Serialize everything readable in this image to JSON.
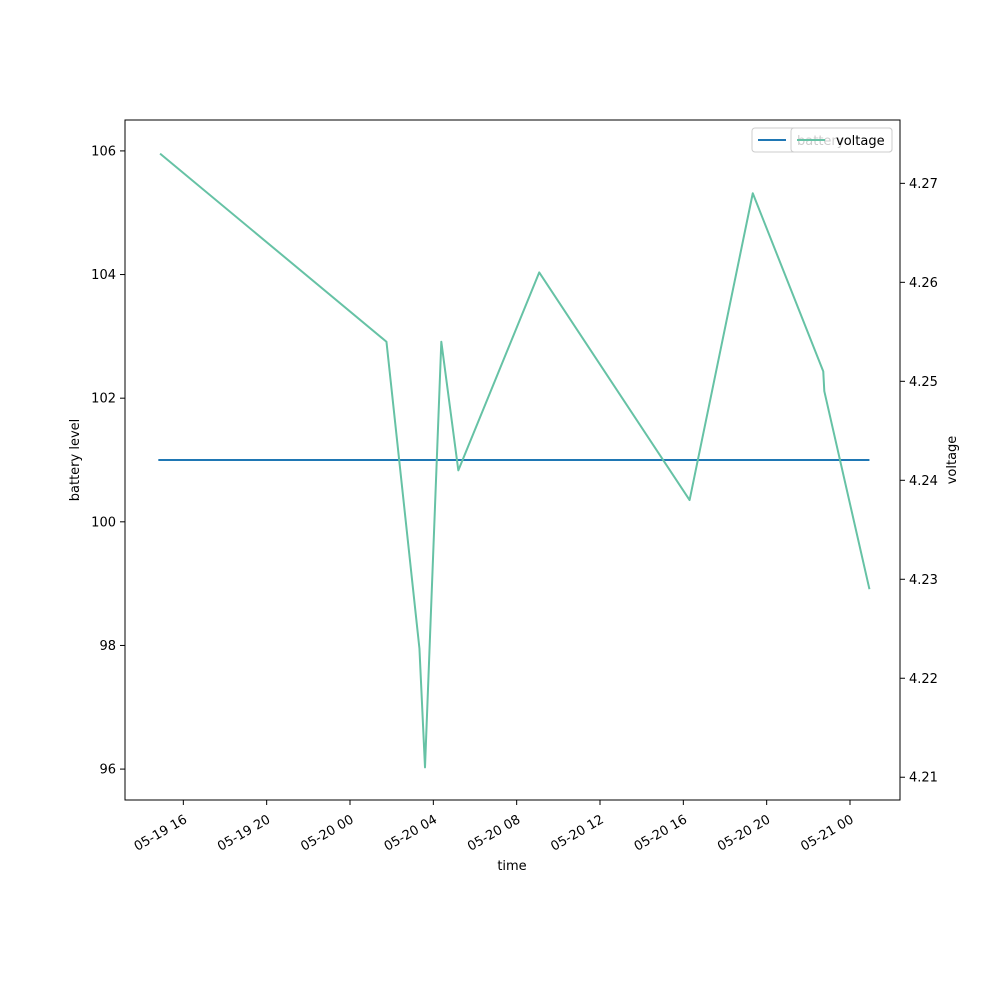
{
  "chart_data": {
    "type": "line",
    "title": "",
    "xlabel": "time",
    "ylabel_left": "battery level",
    "ylabel_right": "voltage",
    "x_ticks": [
      "05-19 16",
      "05-19 20",
      "05-20 00",
      "05-20 04",
      "05-20 08",
      "05-20 12",
      "05-20 16",
      "05-20 20",
      "05-21 00"
    ],
    "xlim": [
      "2019-05-19 13:12",
      "2019-05-21 02:24"
    ],
    "y_left": {
      "ylim": [
        95.5,
        106.5
      ],
      "ticks": [
        "96",
        "98",
        "100",
        "102",
        "104",
        "106"
      ]
    },
    "y_right": {
      "ylim": [
        4.2077,
        4.2764
      ],
      "ticks": [
        "4.21",
        "4.22",
        "4.23",
        "4.24",
        "4.25",
        "4.26",
        "4.27"
      ]
    },
    "grid": false,
    "legend_position": "top-right",
    "series": [
      {
        "name": "battery",
        "axis": "left",
        "color": "#1f77b4",
        "points": [
          [
            "2019-05-19 14:48",
            101
          ],
          [
            "2019-05-21 00:56",
            101
          ]
        ]
      },
      {
        "name": "voltage",
        "axis": "right",
        "color": "#66c2a5",
        "points": [
          [
            "2019-05-19 14:53",
            4.273
          ],
          [
            "2019-05-20 01:45",
            4.254
          ],
          [
            "2019-05-20 03:20",
            4.223
          ],
          [
            "2019-05-20 03:36",
            4.211
          ],
          [
            "2019-05-20 04:23",
            4.254
          ],
          [
            "2019-05-20 05:12",
            4.241
          ],
          [
            "2019-05-20 09:05",
            4.261
          ],
          [
            "2019-05-20 16:18",
            4.238
          ],
          [
            "2019-05-20 19:20",
            4.269
          ],
          [
            "2019-05-20 22:43",
            4.251
          ],
          [
            "2019-05-20 22:46",
            4.249
          ],
          [
            "2019-05-21 00:56",
            4.229
          ]
        ]
      }
    ]
  }
}
